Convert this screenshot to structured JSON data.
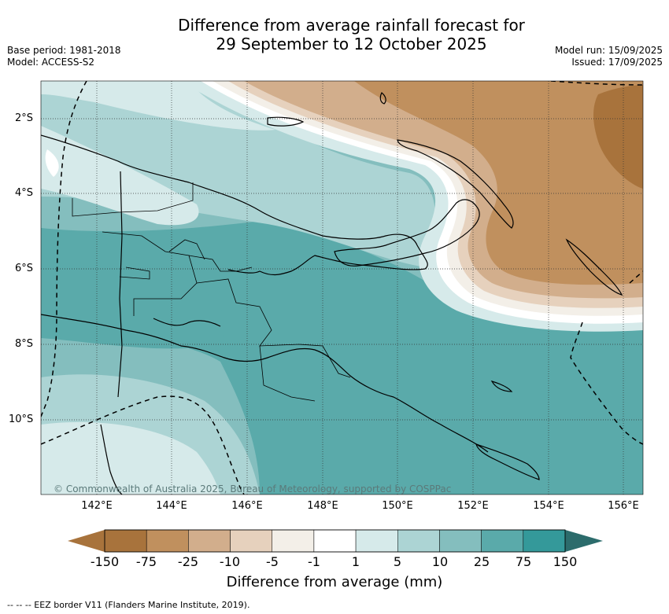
{
  "title_line1": "Difference from average rainfall forecast for",
  "title_line2": "29 September to 12 October 2025",
  "meta_left": {
    "base_period": "Base period: 1981-2018",
    "model": "Model: ACCESS-S2"
  },
  "meta_right": {
    "model_run": "Model run: 15/09/2025",
    "issued": "Issued: 17/09/2025"
  },
  "lat_labels": [
    "2°S",
    "4°S",
    "6°S",
    "8°S",
    "10°S"
  ],
  "lon_labels": [
    "142°E",
    "144°E",
    "146°E",
    "148°E",
    "150°E",
    "152°E",
    "154°E",
    "156°E"
  ],
  "colorbar": {
    "labels": [
      "-150",
      "-75",
      "-25",
      "-10",
      "-5",
      "-1",
      "1",
      "5",
      "10",
      "25",
      "75",
      "150"
    ],
    "colors": [
      "#a8733c",
      "#c0905e",
      "#d2ae8c",
      "#e6d1bd",
      "#f3efe8",
      "#ffffff",
      "#d6eaea",
      "#acd4d4",
      "#84bebe",
      "#5aaaaa",
      "#34999a",
      "#2c6c6c"
    ],
    "title": "Difference from average (mm)"
  },
  "copyright": "© Commonwealth of Australia 2025, Bureau of Meteorology, supported by COSPPac",
  "footer": "--  --  -- EEZ border V11 (Flanders Marine Institute, 2019)."
}
